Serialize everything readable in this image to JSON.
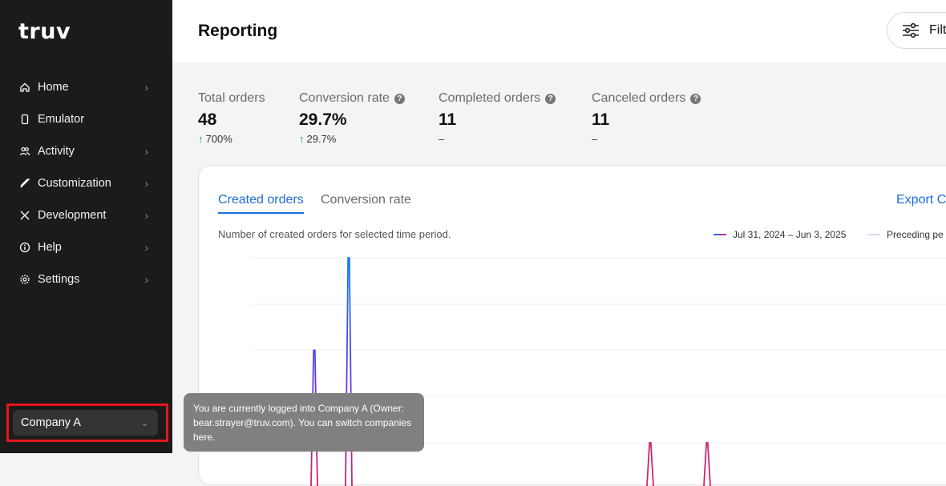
{
  "sidebar": {
    "logo": "truv",
    "items": [
      {
        "label": "Home",
        "icon": "home-icon",
        "chevron": true
      },
      {
        "label": "Emulator",
        "icon": "phone-icon",
        "chevron": false
      },
      {
        "label": "Activity",
        "icon": "users-icon",
        "chevron": true
      },
      {
        "label": "Customization",
        "icon": "brush-icon",
        "chevron": true
      },
      {
        "label": "Development",
        "icon": "tools-icon",
        "chevron": true
      },
      {
        "label": "Help",
        "icon": "info-icon",
        "chevron": true
      },
      {
        "label": "Settings",
        "icon": "gear-icon",
        "chevron": true
      }
    ],
    "company": "Company A"
  },
  "tooltip": "You are currently logged into Company A (Owner: bear.strayer@truv.com). You can switch companies here.",
  "header": {
    "title": "Reporting",
    "filter_label": "Filt"
  },
  "stats": [
    {
      "label": "Total orders",
      "value": "48",
      "change": "700%",
      "up": true,
      "help": false
    },
    {
      "label": "Conversion rate",
      "value": "29.7%",
      "change": "29.7%",
      "up": true,
      "help": true
    },
    {
      "label": "Completed orders",
      "value": "11",
      "change": "–",
      "up": false,
      "help": true
    },
    {
      "label": "Canceled orders",
      "value": "11",
      "change": "–",
      "up": false,
      "help": true
    }
  ],
  "card": {
    "tabs": [
      "Created orders",
      "Conversion rate"
    ],
    "active_tab": 0,
    "export": "Export C",
    "description": "Number of created orders for selected time period.",
    "legend": [
      {
        "label": "Jul 31, 2024 – Jun 3, 2025",
        "color": "#e0245e"
      },
      {
        "label": "Preceding pe",
        "color": "#e6d3f0"
      }
    ]
  },
  "chart": {
    "spikes_in_gridlines": [
      2.0,
      4.0,
      0.0,
      0.0
    ],
    "colors": {
      "top": "#0a7bff",
      "mid": "#5b3df0",
      "bottom": "#d0246a"
    }
  }
}
